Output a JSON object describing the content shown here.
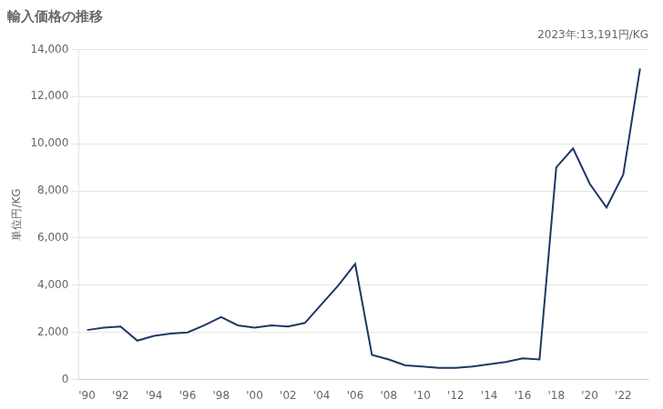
{
  "chart_data": {
    "type": "line",
    "title": "輸入価格の推移",
    "y_label": "単位円/KG",
    "annotation": "2023年:13,191円/KG",
    "x": [
      1990,
      1991,
      1992,
      1993,
      1994,
      1995,
      1996,
      1997,
      1998,
      1999,
      2000,
      2001,
      2002,
      2003,
      2004,
      2005,
      2006,
      2007,
      2008,
      2009,
      2010,
      2011,
      2012,
      2013,
      2014,
      2015,
      2016,
      2017,
      2018,
      2019,
      2020,
      2021,
      2022,
      2023
    ],
    "values": [
      2100,
      2200,
      2250,
      1650,
      1850,
      1950,
      2000,
      2300,
      2650,
      2300,
      2200,
      2300,
      2250,
      2400,
      3200,
      4000,
      4900,
      1050,
      850,
      600,
      550,
      500,
      500,
      550,
      650,
      750,
      900,
      850,
      9000,
      9800,
      8300,
      7300,
      8700,
      13191
    ],
    "color": "#1f3864",
    "xlim": [
      1989.5,
      2023.5
    ],
    "xticks": [
      {
        "value": 1990,
        "label": "'90"
      },
      {
        "value": 1992,
        "label": "'92"
      },
      {
        "value": 1994,
        "label": "'94"
      },
      {
        "value": 1996,
        "label": "'96"
      },
      {
        "value": 1998,
        "label": "'98"
      },
      {
        "value": 2000,
        "label": "'00"
      },
      {
        "value": 2002,
        "label": "'02"
      },
      {
        "value": 2004,
        "label": "'04"
      },
      {
        "value": 2006,
        "label": "'06"
      },
      {
        "value": 2008,
        "label": "'08"
      },
      {
        "value": 2010,
        "label": "'10"
      },
      {
        "value": 2012,
        "label": "'12"
      },
      {
        "value": 2014,
        "label": "'14"
      },
      {
        "value": 2016,
        "label": "'16"
      },
      {
        "value": 2018,
        "label": "'18"
      },
      {
        "value": 2020,
        "label": "'20"
      },
      {
        "value": 2022,
        "label": "'22"
      }
    ],
    "ylim": [
      0,
      14000
    ],
    "yticks": [
      0,
      {
        "value": 2000,
        "label": "2,000"
      },
      {
        "value": 4000,
        "label": "4,000"
      },
      {
        "value": 6000,
        "label": "6,000"
      },
      {
        "value": 8000,
        "label": "8,000"
      },
      {
        "value": 10000,
        "label": "10,000"
      },
      {
        "value": 12000,
        "label": "12,000"
      },
      {
        "value": 14000,
        "label": "14,000"
      }
    ],
    "grid": "y"
  }
}
